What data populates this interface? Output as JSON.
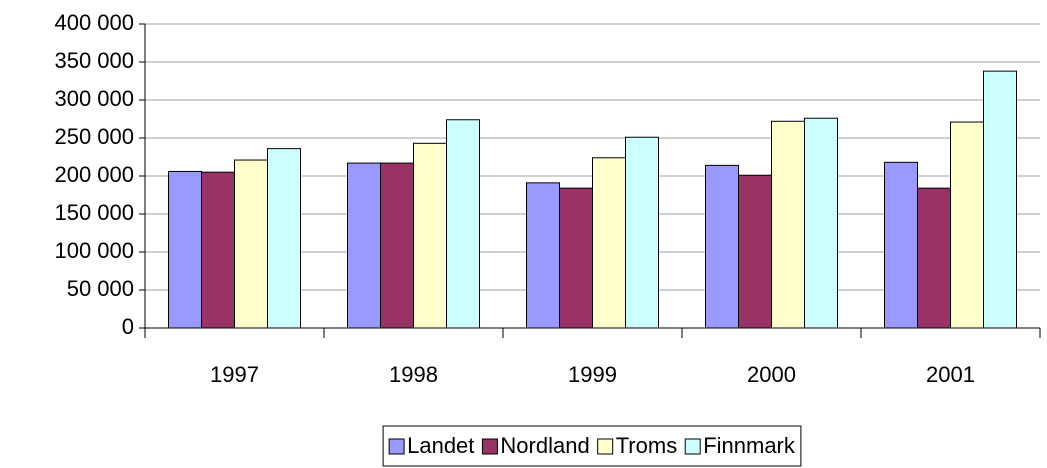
{
  "chart_data": {
    "type": "bar",
    "categories": [
      "1997",
      "1998",
      "1999",
      "2000",
      "2001"
    ],
    "series": [
      {
        "name": "Landet",
        "color": "#9999ff",
        "values": [
          206000,
          217000,
          191000,
          214000,
          218000
        ]
      },
      {
        "name": "Nordland",
        "color": "#993366",
        "values": [
          205000,
          217000,
          184000,
          201000,
          184000
        ]
      },
      {
        "name": "Troms",
        "color": "#ffffcc",
        "values": [
          221000,
          243000,
          224000,
          272000,
          271000
        ]
      },
      {
        "name": "Finnmark",
        "color": "#ccffff",
        "values": [
          236000,
          274000,
          251000,
          276000,
          338000
        ]
      }
    ],
    "ylim": [
      0,
      400000
    ],
    "yticks": [
      0,
      {
        "value": 50000,
        "label": "50 000"
      },
      {
        "value": 100000,
        "label": "100 000"
      },
      {
        "value": 150000,
        "label": "150 000"
      },
      {
        "value": 200000,
        "label": "200 000"
      },
      {
        "value": 250000,
        "label": "250 000"
      },
      {
        "value": 300000,
        "label": "300 000"
      },
      {
        "value": 350000,
        "label": "350 000"
      },
      {
        "value": 400000,
        "label": "400 000"
      }
    ],
    "grid": true,
    "legend": "bottom"
  }
}
